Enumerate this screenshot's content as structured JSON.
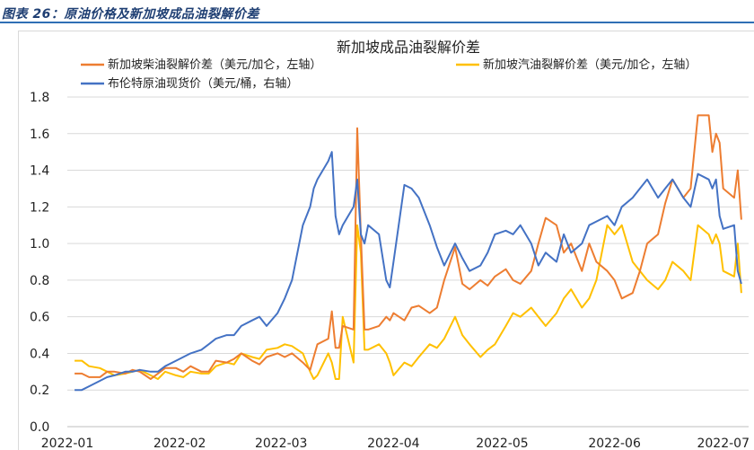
{
  "figure": {
    "caption": "图表 26：原油价格及新加坡成品油裂解价差"
  },
  "chart_data": {
    "type": "line",
    "title": "新加坡成品油裂解价差",
    "xlabel": "",
    "ylabel": "",
    "ylim": [
      0.0,
      1.8
    ],
    "yticks": [
      "0.0",
      "0.2",
      "0.4",
      "0.6",
      "0.8",
      "1.0",
      "1.2",
      "1.4",
      "1.6",
      "1.8"
    ],
    "xtick_labels": [
      "2022-01",
      "2022-02",
      "2022-03",
      "2022-04",
      "2022-05",
      "2022-06",
      "2022-07"
    ],
    "legend_position": "top",
    "grid": "horizontal",
    "series": [
      {
        "name": "新加坡柴油裂解价差（美元/加仑，左轴）",
        "color": "#ED7D31",
        "points": [
          [
            "2022-01-03",
            0.29
          ],
          [
            "2022-01-05",
            0.29
          ],
          [
            "2022-01-07",
            0.27
          ],
          [
            "2022-01-10",
            0.27
          ],
          [
            "2022-01-12",
            0.3
          ],
          [
            "2022-01-14",
            0.3
          ],
          [
            "2022-01-17",
            0.29
          ],
          [
            "2022-01-19",
            0.31
          ],
          [
            "2022-01-21",
            0.3
          ],
          [
            "2022-01-24",
            0.26
          ],
          [
            "2022-01-26",
            0.29
          ],
          [
            "2022-01-28",
            0.32
          ],
          [
            "2022-01-31",
            0.32
          ],
          [
            "2022-02-02",
            0.3
          ],
          [
            "2022-02-04",
            0.33
          ],
          [
            "2022-02-07",
            0.3
          ],
          [
            "2022-02-09",
            0.3
          ],
          [
            "2022-02-11",
            0.36
          ],
          [
            "2022-02-14",
            0.35
          ],
          [
            "2022-02-16",
            0.37
          ],
          [
            "2022-02-18",
            0.4
          ],
          [
            "2022-02-21",
            0.36
          ],
          [
            "2022-02-23",
            0.34
          ],
          [
            "2022-02-25",
            0.38
          ],
          [
            "2022-02-28",
            0.4
          ],
          [
            "2022-03-02",
            0.38
          ],
          [
            "2022-03-04",
            0.4
          ],
          [
            "2022-03-07",
            0.35
          ],
          [
            "2022-03-09",
            0.31
          ],
          [
            "2022-03-10",
            0.38
          ],
          [
            "2022-03-11",
            0.45
          ],
          [
            "2022-03-14",
            0.48
          ],
          [
            "2022-03-15",
            0.63
          ],
          [
            "2022-03-16",
            0.43
          ],
          [
            "2022-03-17",
            0.43
          ],
          [
            "2022-03-18",
            0.55
          ],
          [
            "2022-03-21",
            0.53
          ],
          [
            "2022-03-22",
            1.63
          ],
          [
            "2022-03-23",
            1.05
          ],
          [
            "2022-03-24",
            0.53
          ],
          [
            "2022-03-25",
            0.53
          ],
          [
            "2022-03-28",
            0.55
          ],
          [
            "2022-03-30",
            0.6
          ],
          [
            "2022-03-31",
            0.58
          ],
          [
            "2022-04-01",
            0.62
          ],
          [
            "2022-04-04",
            0.58
          ],
          [
            "2022-04-06",
            0.65
          ],
          [
            "2022-04-08",
            0.66
          ],
          [
            "2022-04-11",
            0.62
          ],
          [
            "2022-04-13",
            0.65
          ],
          [
            "2022-04-15",
            0.8
          ],
          [
            "2022-04-18",
            0.98
          ],
          [
            "2022-04-20",
            0.78
          ],
          [
            "2022-04-22",
            0.75
          ],
          [
            "2022-04-25",
            0.8
          ],
          [
            "2022-04-27",
            0.77
          ],
          [
            "2022-04-29",
            0.82
          ],
          [
            "2022-05-02",
            0.86
          ],
          [
            "2022-05-04",
            0.8
          ],
          [
            "2022-05-06",
            0.78
          ],
          [
            "2022-05-09",
            0.85
          ],
          [
            "2022-05-11",
            1.0
          ],
          [
            "2022-05-13",
            1.14
          ],
          [
            "2022-05-16",
            1.1
          ],
          [
            "2022-05-18",
            0.95
          ],
          [
            "2022-05-20",
            1.0
          ],
          [
            "2022-05-23",
            0.85
          ],
          [
            "2022-05-25",
            1.0
          ],
          [
            "2022-05-27",
            0.9
          ],
          [
            "2022-05-30",
            0.85
          ],
          [
            "2022-06-01",
            0.8
          ],
          [
            "2022-06-03",
            0.7
          ],
          [
            "2022-06-06",
            0.73
          ],
          [
            "2022-06-08",
            0.85
          ],
          [
            "2022-06-10",
            1.0
          ],
          [
            "2022-06-13",
            1.05
          ],
          [
            "2022-06-15",
            1.22
          ],
          [
            "2022-06-17",
            1.35
          ],
          [
            "2022-06-20",
            1.25
          ],
          [
            "2022-06-22",
            1.3
          ],
          [
            "2022-06-24",
            1.7
          ],
          [
            "2022-06-27",
            1.7
          ],
          [
            "2022-06-28",
            1.5
          ],
          [
            "2022-06-29",
            1.6
          ],
          [
            "2022-06-30",
            1.55
          ],
          [
            "2022-07-01",
            1.3
          ],
          [
            "2022-07-04",
            1.25
          ],
          [
            "2022-07-05",
            1.4
          ],
          [
            "2022-07-06",
            1.13
          ]
        ]
      },
      {
        "name": "新加坡汽油裂解价差（美元/加仑，左轴）",
        "color": "#FFC000",
        "points": [
          [
            "2022-01-03",
            0.36
          ],
          [
            "2022-01-05",
            0.36
          ],
          [
            "2022-01-07",
            0.33
          ],
          [
            "2022-01-10",
            0.32
          ],
          [
            "2022-01-12",
            0.3
          ],
          [
            "2022-01-14",
            0.28
          ],
          [
            "2022-01-17",
            0.29
          ],
          [
            "2022-01-19",
            0.3
          ],
          [
            "2022-01-21",
            0.31
          ],
          [
            "2022-01-24",
            0.28
          ],
          [
            "2022-01-26",
            0.26
          ],
          [
            "2022-01-28",
            0.3
          ],
          [
            "2022-01-31",
            0.28
          ],
          [
            "2022-02-02",
            0.27
          ],
          [
            "2022-02-04",
            0.3
          ],
          [
            "2022-02-07",
            0.29
          ],
          [
            "2022-02-09",
            0.29
          ],
          [
            "2022-02-11",
            0.33
          ],
          [
            "2022-02-14",
            0.35
          ],
          [
            "2022-02-16",
            0.34
          ],
          [
            "2022-02-18",
            0.4
          ],
          [
            "2022-02-21",
            0.38
          ],
          [
            "2022-02-23",
            0.37
          ],
          [
            "2022-02-25",
            0.42
          ],
          [
            "2022-02-28",
            0.43
          ],
          [
            "2022-03-02",
            0.45
          ],
          [
            "2022-03-04",
            0.44
          ],
          [
            "2022-03-07",
            0.4
          ],
          [
            "2022-03-09",
            0.3
          ],
          [
            "2022-03-10",
            0.26
          ],
          [
            "2022-03-11",
            0.28
          ],
          [
            "2022-03-14",
            0.4
          ],
          [
            "2022-03-15",
            0.35
          ],
          [
            "2022-03-16",
            0.26
          ],
          [
            "2022-03-17",
            0.26
          ],
          [
            "2022-03-18",
            0.6
          ],
          [
            "2022-03-21",
            0.35
          ],
          [
            "2022-03-22",
            1.1
          ],
          [
            "2022-03-23",
            0.95
          ],
          [
            "2022-03-24",
            0.42
          ],
          [
            "2022-03-25",
            0.42
          ],
          [
            "2022-03-28",
            0.45
          ],
          [
            "2022-03-30",
            0.4
          ],
          [
            "2022-03-31",
            0.35
          ],
          [
            "2022-04-01",
            0.28
          ],
          [
            "2022-04-04",
            0.35
          ],
          [
            "2022-04-06",
            0.33
          ],
          [
            "2022-04-08",
            0.38
          ],
          [
            "2022-04-11",
            0.45
          ],
          [
            "2022-04-13",
            0.43
          ],
          [
            "2022-04-15",
            0.48
          ],
          [
            "2022-04-18",
            0.6
          ],
          [
            "2022-04-20",
            0.5
          ],
          [
            "2022-04-22",
            0.45
          ],
          [
            "2022-04-25",
            0.38
          ],
          [
            "2022-04-27",
            0.42
          ],
          [
            "2022-04-29",
            0.45
          ],
          [
            "2022-05-02",
            0.55
          ],
          [
            "2022-05-04",
            0.62
          ],
          [
            "2022-05-06",
            0.6
          ],
          [
            "2022-05-09",
            0.65
          ],
          [
            "2022-05-11",
            0.6
          ],
          [
            "2022-05-13",
            0.55
          ],
          [
            "2022-05-16",
            0.62
          ],
          [
            "2022-05-18",
            0.7
          ],
          [
            "2022-05-20",
            0.75
          ],
          [
            "2022-05-23",
            0.65
          ],
          [
            "2022-05-25",
            0.7
          ],
          [
            "2022-05-27",
            0.8
          ],
          [
            "2022-05-30",
            1.1
          ],
          [
            "2022-06-01",
            1.05
          ],
          [
            "2022-06-03",
            1.1
          ],
          [
            "2022-06-06",
            0.9
          ],
          [
            "2022-06-08",
            0.85
          ],
          [
            "2022-06-10",
            0.8
          ],
          [
            "2022-06-13",
            0.75
          ],
          [
            "2022-06-15",
            0.8
          ],
          [
            "2022-06-17",
            0.9
          ],
          [
            "2022-06-20",
            0.85
          ],
          [
            "2022-06-22",
            0.8
          ],
          [
            "2022-06-24",
            1.1
          ],
          [
            "2022-06-27",
            1.05
          ],
          [
            "2022-06-28",
            1.0
          ],
          [
            "2022-06-29",
            1.05
          ],
          [
            "2022-06-30",
            1.0
          ],
          [
            "2022-07-01",
            0.85
          ],
          [
            "2022-07-04",
            0.82
          ],
          [
            "2022-07-05",
            1.0
          ],
          [
            "2022-07-06",
            0.73
          ]
        ]
      },
      {
        "name": "布伦特原油现货价（美元/桶，右轴）",
        "color": "#4472C4",
        "points": [
          [
            "2022-01-03",
            0.2
          ],
          [
            "2022-01-05",
            0.2
          ],
          [
            "2022-01-07",
            0.22
          ],
          [
            "2022-01-10",
            0.25
          ],
          [
            "2022-01-12",
            0.27
          ],
          [
            "2022-01-14",
            0.28
          ],
          [
            "2022-01-17",
            0.3
          ],
          [
            "2022-01-19",
            0.3
          ],
          [
            "2022-01-21",
            0.31
          ],
          [
            "2022-01-24",
            0.3
          ],
          [
            "2022-01-26",
            0.3
          ],
          [
            "2022-01-28",
            0.33
          ],
          [
            "2022-01-31",
            0.36
          ],
          [
            "2022-02-02",
            0.38
          ],
          [
            "2022-02-04",
            0.4
          ],
          [
            "2022-02-07",
            0.42
          ],
          [
            "2022-02-09",
            0.45
          ],
          [
            "2022-02-11",
            0.48
          ],
          [
            "2022-02-14",
            0.5
          ],
          [
            "2022-02-16",
            0.5
          ],
          [
            "2022-02-18",
            0.55
          ],
          [
            "2022-02-21",
            0.58
          ],
          [
            "2022-02-23",
            0.6
          ],
          [
            "2022-02-25",
            0.55
          ],
          [
            "2022-02-28",
            0.62
          ],
          [
            "2022-03-02",
            0.7
          ],
          [
            "2022-03-04",
            0.8
          ],
          [
            "2022-03-07",
            1.1
          ],
          [
            "2022-03-09",
            1.2
          ],
          [
            "2022-03-10",
            1.3
          ],
          [
            "2022-03-11",
            1.35
          ],
          [
            "2022-03-14",
            1.45
          ],
          [
            "2022-03-15",
            1.5
          ],
          [
            "2022-03-16",
            1.15
          ],
          [
            "2022-03-17",
            1.05
          ],
          [
            "2022-03-18",
            1.1
          ],
          [
            "2022-03-21",
            1.2
          ],
          [
            "2022-03-22",
            1.35
          ],
          [
            "2022-03-23",
            1.05
          ],
          [
            "2022-03-24",
            1.0
          ],
          [
            "2022-03-25",
            1.1
          ],
          [
            "2022-03-28",
            1.05
          ],
          [
            "2022-03-30",
            0.8
          ],
          [
            "2022-03-31",
            0.76
          ],
          [
            "2022-04-01",
            0.9
          ],
          [
            "2022-04-04",
            1.32
          ],
          [
            "2022-04-06",
            1.3
          ],
          [
            "2022-04-08",
            1.25
          ],
          [
            "2022-04-11",
            1.1
          ],
          [
            "2022-04-13",
            0.98
          ],
          [
            "2022-04-15",
            0.88
          ],
          [
            "2022-04-18",
            1.0
          ],
          [
            "2022-04-20",
            0.92
          ],
          [
            "2022-04-22",
            0.85
          ],
          [
            "2022-04-25",
            0.88
          ],
          [
            "2022-04-27",
            0.95
          ],
          [
            "2022-04-29",
            1.05
          ],
          [
            "2022-05-02",
            1.07
          ],
          [
            "2022-05-04",
            1.05
          ],
          [
            "2022-05-06",
            1.1
          ],
          [
            "2022-05-09",
            1.0
          ],
          [
            "2022-05-11",
            0.88
          ],
          [
            "2022-05-13",
            0.95
          ],
          [
            "2022-05-16",
            0.9
          ],
          [
            "2022-05-18",
            1.05
          ],
          [
            "2022-05-20",
            0.95
          ],
          [
            "2022-05-23",
            1.0
          ],
          [
            "2022-05-25",
            1.1
          ],
          [
            "2022-05-27",
            1.12
          ],
          [
            "2022-05-30",
            1.15
          ],
          [
            "2022-06-01",
            1.1
          ],
          [
            "2022-06-03",
            1.2
          ],
          [
            "2022-06-06",
            1.25
          ],
          [
            "2022-06-08",
            1.3
          ],
          [
            "2022-06-10",
            1.35
          ],
          [
            "2022-06-13",
            1.25
          ],
          [
            "2022-06-15",
            1.3
          ],
          [
            "2022-06-17",
            1.35
          ],
          [
            "2022-06-20",
            1.25
          ],
          [
            "2022-06-22",
            1.2
          ],
          [
            "2022-06-24",
            1.38
          ],
          [
            "2022-06-27",
            1.35
          ],
          [
            "2022-06-28",
            1.3
          ],
          [
            "2022-06-29",
            1.35
          ],
          [
            "2022-06-30",
            1.15
          ],
          [
            "2022-07-01",
            1.08
          ],
          [
            "2022-07-04",
            1.1
          ],
          [
            "2022-07-05",
            0.85
          ],
          [
            "2022-07-06",
            0.78
          ]
        ]
      }
    ]
  }
}
